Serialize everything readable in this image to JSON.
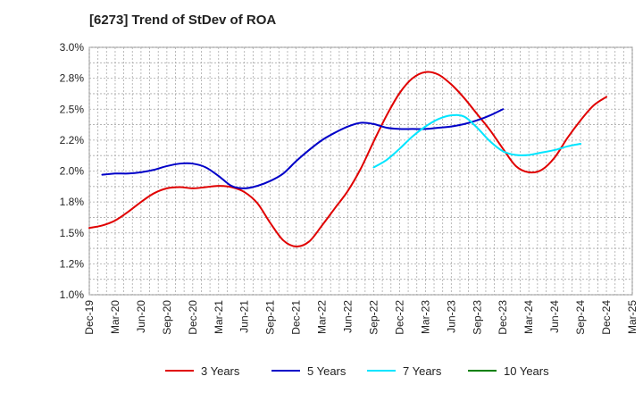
{
  "chart_data": {
    "type": "line",
    "title": "[6273]  Trend of StDev of ROA",
    "xlabel": "",
    "ylabel": "",
    "ylim": [
      1.0,
      3.0
    ],
    "yticks": [
      "1.0%",
      "1.2%",
      "1.5%",
      "1.8%",
      "2.0%",
      "2.2%",
      "2.5%",
      "2.8%",
      "3.0%"
    ],
    "ytick_values": [
      1.0,
      1.25,
      1.5,
      1.75,
      2.0,
      2.25,
      2.5,
      2.75,
      3.0
    ],
    "xticks": [
      "Dec-19",
      "Mar-20",
      "Jun-20",
      "Sep-20",
      "Dec-20",
      "Mar-21",
      "Jun-21",
      "Sep-21",
      "Dec-21",
      "Mar-22",
      "Jun-22",
      "Sep-22",
      "Dec-22",
      "Mar-23",
      "Jun-23",
      "Sep-23",
      "Dec-23",
      "Mar-24",
      "Jun-24",
      "Sep-24",
      "Dec-24",
      "Mar-25"
    ],
    "grid": true,
    "legend_position": "bottom",
    "series": [
      {
        "name": "3 Years",
        "color": "#e00000",
        "values": [
          1.54,
          1.56,
          1.6,
          1.67,
          1.75,
          1.82,
          1.86,
          1.87,
          1.86,
          1.87,
          1.88,
          1.87,
          1.83,
          1.74,
          1.58,
          1.44,
          1.39,
          1.43,
          1.56,
          1.7,
          1.84,
          2.02,
          2.24,
          2.45,
          2.63,
          2.75,
          2.8,
          2.78,
          2.7,
          2.59,
          2.46,
          2.33,
          2.18,
          2.04,
          1.99,
          2.01,
          2.11,
          2.27,
          2.41,
          2.53,
          2.6
        ]
      },
      {
        "name": "5 Years",
        "color": "#0000c8",
        "values": [
          null,
          1.97,
          1.98,
          1.98,
          1.99,
          2.01,
          2.04,
          2.06,
          2.06,
          2.03,
          1.96,
          1.88,
          1.86,
          1.88,
          1.92,
          1.98,
          2.08,
          2.17,
          2.25,
          2.31,
          2.36,
          2.39,
          2.38,
          2.35,
          2.34,
          2.34,
          2.34,
          2.35,
          2.36,
          2.38,
          2.41,
          2.45,
          2.5
        ]
      },
      {
        "name": "7 Years",
        "color": "#00e5ff",
        "values": [
          null,
          null,
          null,
          null,
          null,
          null,
          null,
          null,
          null,
          null,
          null,
          null,
          null,
          null,
          null,
          null,
          null,
          null,
          null,
          null,
          null,
          null,
          2.03,
          2.09,
          2.18,
          2.28,
          2.36,
          2.42,
          2.45,
          2.44,
          2.35,
          2.24,
          2.16,
          2.13,
          2.13,
          2.15,
          2.17,
          2.2,
          2.22
        ]
      },
      {
        "name": "10 Years",
        "color": "#008000",
        "values": []
      }
    ]
  }
}
